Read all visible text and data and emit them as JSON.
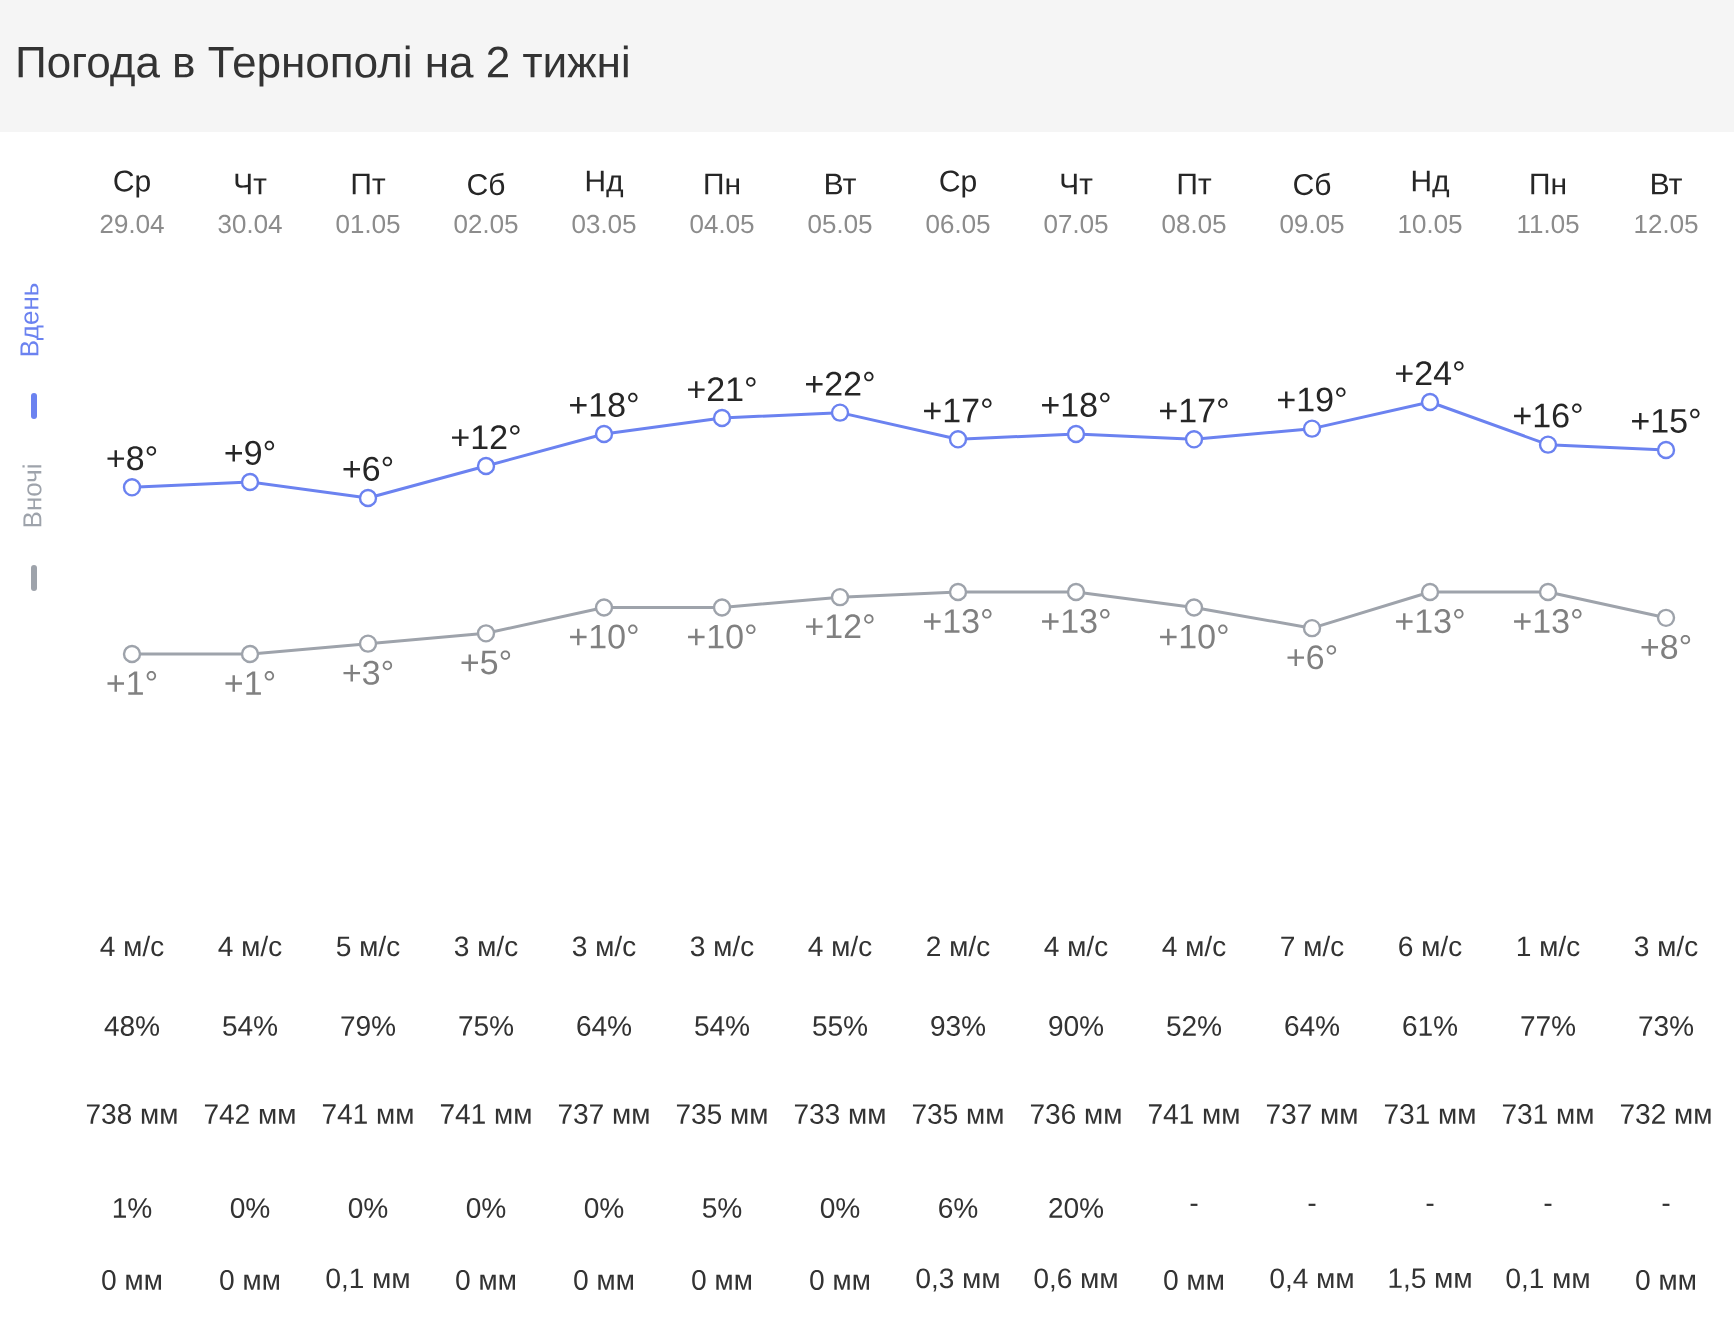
{
  "chart_data": [
    {
      "type": "line",
      "title": "Погода в Тернополі на 2 тижні",
      "categories": [
        "Ср",
        "Чт",
        "Пт",
        "Сб",
        "Нд",
        "Пн",
        "Вт",
        "Ср",
        "Чт",
        "Пт",
        "Сб",
        "Нд",
        "Пн",
        "Вт"
      ],
      "series": [
        {
          "name": "Вдень",
          "color": "#6b82f0",
          "values": [
            8,
            9,
            6,
            12,
            18,
            21,
            22,
            17,
            18,
            17,
            19,
            24,
            16,
            15
          ],
          "value_labels": [
            "+8°",
            "+9°",
            "+6°",
            "+12°",
            "+18°",
            "+21°",
            "+22°",
            "+17°",
            "+18°",
            "+17°",
            "+19°",
            "+24°",
            "+16°",
            "+15°"
          ]
        }
      ],
      "tick_labels": "x",
      "legend": "left",
      "marker": "circle",
      "annotations": [
        "29.04",
        "30.04",
        "01.05",
        "02.05",
        "03.05",
        "04.05",
        "05.05",
        "06.05",
        "07.05",
        "08.05",
        "09.05",
        "10.05",
        "11.05",
        "12.05",
        "4 м/с",
        "4 м/с",
        "5 м/с",
        "3 м/с",
        "3 м/с",
        "3 м/с",
        "4 м/с",
        "2 м/с",
        "4 м/с",
        "4 м/с",
        "7 м/с",
        "6 м/с",
        "1 м/с",
        "3 м/с",
        "48%",
        "54%",
        "79%",
        "75%",
        "64%",
        "54%",
        "55%",
        "93%",
        "90%",
        "52%",
        "64%",
        "61%",
        "77%",
        "73%",
        "738 мм",
        "742 мм",
        "741 мм",
        "741 мм",
        "737 мм",
        "735 мм",
        "733 мм",
        "735 мм",
        "736 мм",
        "741 мм",
        "737 мм",
        "731 мм",
        "731 мм",
        "732 мм",
        "1%",
        "0%",
        "0%",
        "0%",
        "0%",
        "5%",
        "0%",
        "6%",
        "20%",
        "-",
        "-",
        "-",
        "-",
        "-",
        "0 мм",
        "0 мм",
        "0,1 мм",
        "0 мм",
        "0 мм",
        "0 мм",
        "0 мм",
        "0,3 мм",
        "0,6 мм",
        "0 мм",
        "0,4 мм",
        "1,5 мм",
        "0,1 мм",
        "0 мм"
      ]
    },
    {
      "type": "line",
      "categories": [
        null,
        null,
        null,
        null,
        null,
        null,
        null,
        null,
        null,
        null,
        null,
        null,
        null,
        null
      ],
      "series": [
        {
          "name": "Вночі",
          "color": "#9ea3ab",
          "values": [
            1,
            1,
            3,
            5,
            10,
            10,
            12,
            13,
            13,
            10,
            6,
            13,
            13,
            8
          ],
          "value_labels": [
            "+1°",
            "+1°",
            "+3°",
            "+5°",
            "+10°",
            "+10°",
            "+12°",
            "+13°",
            "+13°",
            "+10°",
            "+6°",
            "+13°",
            "+13°",
            "+8°"
          ]
        }
      ],
      "tick_labels": false,
      "legend": "left",
      "marker": "circle"
    }
  ]
}
